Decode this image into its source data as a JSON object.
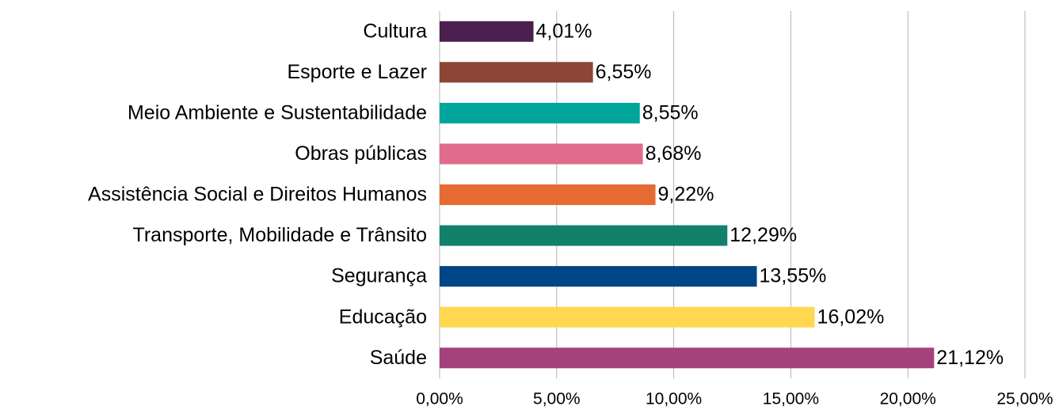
{
  "chart_data": {
    "type": "bar",
    "orientation": "horizontal",
    "categories": [
      "Cultura",
      "Esporte e Lazer",
      "Meio Ambiente e Sustentabilidade",
      "Obras públicas",
      "Assistência Social e Direitos Humanos",
      "Transporte, Mobilidade e Trânsito",
      "Segurança",
      "Educação",
      "Saúde"
    ],
    "values": [
      4.01,
      6.55,
      8.55,
      8.68,
      9.22,
      12.29,
      13.55,
      16.02,
      21.12
    ],
    "value_labels": [
      "4,01%",
      "6,55%",
      "8,55%",
      "8,68%",
      "9,22%",
      "12,29%",
      "13,55%",
      "16,02%",
      "21,12%"
    ],
    "colors": [
      "#4b1f4f",
      "#8b4636",
      "#00a59b",
      "#e06b8a",
      "#e66b33",
      "#13806a",
      "#004586",
      "#ffd84f",
      "#a3427d"
    ],
    "xlim": [
      0,
      25
    ],
    "xticks": [
      {
        "value": 0,
        "label": "0,00%"
      },
      {
        "value": 5,
        "label": "5,00%"
      },
      {
        "value": 10,
        "label": "10,00%"
      },
      {
        "value": 15,
        "label": "15,00%"
      },
      {
        "value": 20,
        "label": "20,00%"
      },
      {
        "value": 25,
        "label": "25,00%"
      }
    ],
    "grid": true
  }
}
